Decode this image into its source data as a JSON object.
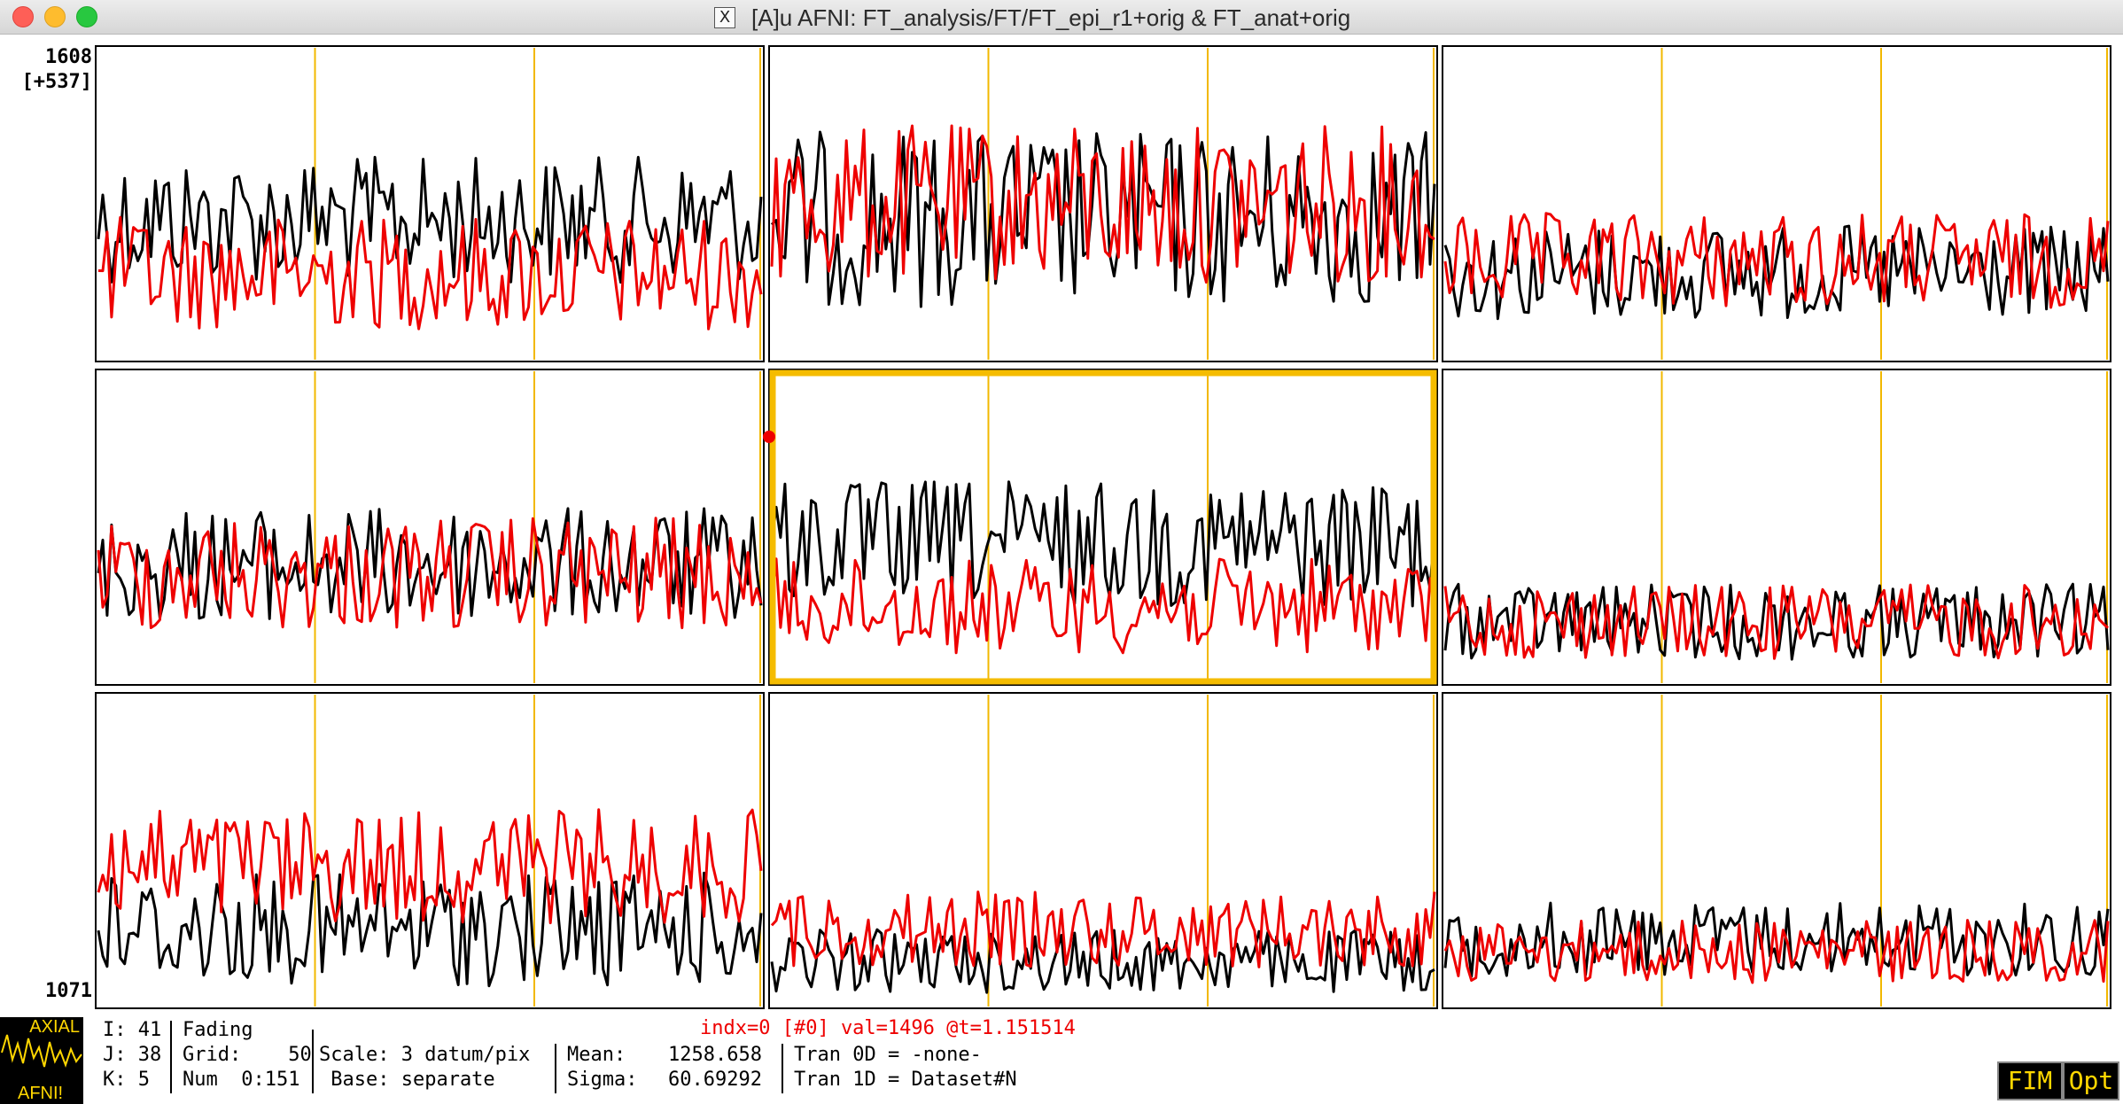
{
  "window": {
    "title": "[A]u AFNI: FT_analysis/FT/FT_epi_r1+orig & FT_anat+orig"
  },
  "graph": {
    "y_top": "1608",
    "y_range": "[+537]",
    "y_bottom": "1071",
    "grid_rows": 3,
    "grid_cols": 3,
    "selected_cell": [
      1,
      1
    ],
    "colors": {
      "series_1": "#000000",
      "series_2": "#ee0000",
      "grid": "#f2b800",
      "selected_border": "#f5bc00",
      "frame": "#000000"
    },
    "series_names": [
      "black-series",
      "red-series"
    ]
  },
  "status": {
    "i": "I: 41",
    "j": "J: 38",
    "k": "K: 5",
    "fading": "Fading",
    "grid": "Grid:    50",
    "num": "Num  0:151",
    "scale": "Scale: 3 datum/pix",
    "base": " Base: separate",
    "mean_label": "Mean:",
    "mean_value": "1258.658",
    "sigma_label": "Sigma:",
    "sigma_value": "60.69292",
    "tran0d": "Tran 0D = -none-",
    "tran1d": "Tran 1D = Dataset#N",
    "voxel_info": "indx=0 [#0] val=1496 @t=1.151514"
  },
  "axial_button": {
    "top": "AXIAL",
    "bottom": "AFNI!"
  },
  "buttons": {
    "fim": "FIM",
    "opt": "Opt"
  }
}
